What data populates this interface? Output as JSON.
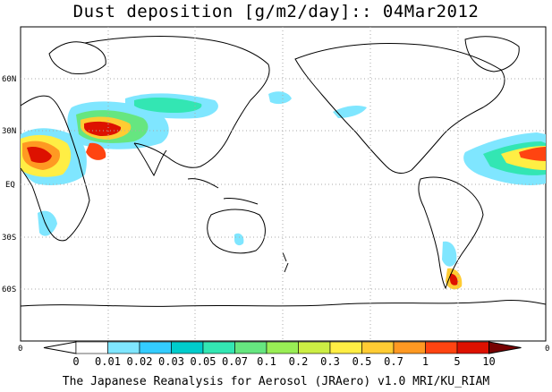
{
  "title": "Dust deposition [g/m2/day]:: 04Mar2012",
  "credit": "The Japanese Reanalysis for Aerosol (JRAero) v1.0 MRI/KU_RIAM",
  "axes": {
    "lat_labels": [
      "60N",
      "30N",
      "EQ",
      "30S",
      "60S"
    ],
    "lon_tick_left": "0",
    "lon_tick_right": "0"
  },
  "colorbar": {
    "labels": [
      "0",
      "0.01",
      "0.02",
      "0.03",
      "0.05",
      "0.07",
      "0.1",
      "0.2",
      "0.3",
      "0.5",
      "0.7",
      "1",
      "5",
      "10"
    ],
    "colors": [
      "#ffffff",
      "#ffffff",
      "#7fe6ff",
      "#33ccff",
      "#00cccc",
      "#33e6b3",
      "#66e680",
      "#99ee55",
      "#ccee44",
      "#ffee44",
      "#ffcc33",
      "#ff9922",
      "#ff4411",
      "#dd1100",
      "#aa0000",
      "#770000"
    ]
  },
  "colors": {
    "land_outline": "#000000",
    "grid": "#aaaaaa",
    "low": "#7fe6ff",
    "mid": "#33e6b3",
    "high": "#ff9922",
    "max": "#cc0000"
  }
}
